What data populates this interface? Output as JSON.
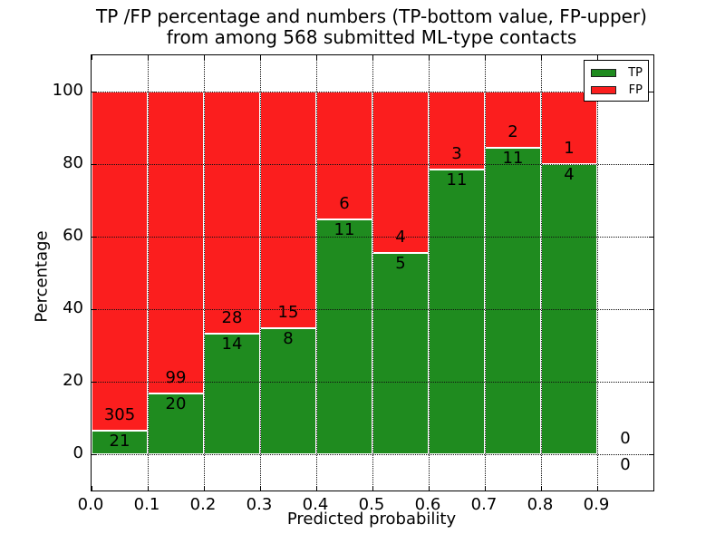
{
  "figure": {
    "title_line1": "TP /FP percentage and numbers (TP-bottom value, FP-upper)",
    "title_line2": "from among 568 submitted ML-type contacts"
  },
  "chart_data": {
    "type": "bar",
    "subtype": "stacked-percentage-histogram",
    "title": "TP /FP percentage and numbers (TP-bottom value, FP-upper) from among 568 submitted ML-type contacts",
    "xlabel": "Predicted probability",
    "ylabel": "Percentage",
    "xlim": [
      0.0,
      1.0
    ],
    "ylim": [
      -10,
      110
    ],
    "xticks": [
      "0.0",
      "0.1",
      "0.2",
      "0.3",
      "0.4",
      "0.5",
      "0.6",
      "0.7",
      "0.8",
      "0.9"
    ],
    "xtick_values": [
      0.0,
      0.1,
      0.2,
      0.3,
      0.4,
      0.5,
      0.6,
      0.7,
      0.8,
      0.9
    ],
    "yticks": [
      "0",
      "20",
      "40",
      "60",
      "80",
      "100"
    ],
    "ytick_values": [
      0,
      20,
      40,
      60,
      80,
      100
    ],
    "grid": {
      "style": "dotted",
      "color": "#000000",
      "x_values": [
        0.1,
        0.2,
        0.3,
        0.4,
        0.5,
        0.6,
        0.7,
        0.8,
        0.9
      ],
      "y_values": [
        0,
        20,
        40,
        60,
        80,
        100
      ]
    },
    "bin_width": 0.1,
    "categories": [
      "0.0-0.1",
      "0.1-0.2",
      "0.2-0.3",
      "0.3-0.4",
      "0.4-0.5",
      "0.5-0.6",
      "0.6-0.7",
      "0.7-0.8",
      "0.8-0.9",
      "0.9-1.0"
    ],
    "series": [
      {
        "name": "TP",
        "color": "#1f8b1f",
        "counts": [
          21,
          20,
          14,
          8,
          11,
          5,
          11,
          11,
          4,
          0
        ]
      },
      {
        "name": "FP",
        "color": "#fb1e1e",
        "counts": [
          305,
          99,
          28,
          15,
          6,
          4,
          3,
          2,
          1,
          0
        ]
      }
    ],
    "tp_percent": [
      6.44,
      16.81,
      33.33,
      34.78,
      64.71,
      55.56,
      78.57,
      84.62,
      80.0,
      0.0
    ],
    "legend": {
      "position": "upper right",
      "entries": [
        {
          "label": "TP",
          "color": "#1f8b1f"
        },
        {
          "label": "FP",
          "color": "#fb1e1e"
        }
      ]
    }
  }
}
